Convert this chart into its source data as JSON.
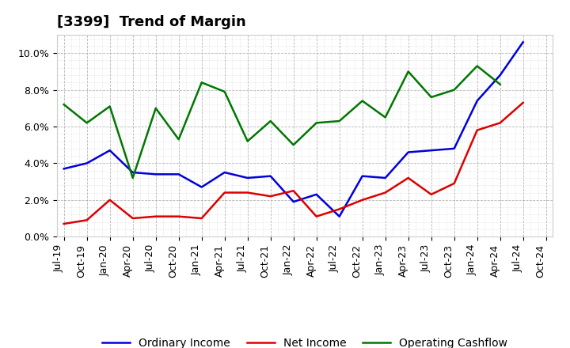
{
  "title": "[3399]  Trend of Margin",
  "title_fontsize": 13,
  "background_color": "#ffffff",
  "plot_background_color": "#ffffff",
  "grid_color": "#999999",
  "ylim": [
    0.0,
    0.11
  ],
  "yticks": [
    0.0,
    0.02,
    0.04,
    0.06,
    0.08,
    0.1
  ],
  "x_labels": [
    "Jul-19",
    "Oct-19",
    "Jan-20",
    "Apr-20",
    "Jul-20",
    "Oct-20",
    "Jan-21",
    "Apr-21",
    "Jul-21",
    "Oct-21",
    "Jan-22",
    "Apr-22",
    "Jul-22",
    "Oct-22",
    "Jan-23",
    "Apr-23",
    "Jul-23",
    "Oct-23",
    "Jan-24",
    "Apr-24",
    "Jul-24",
    "Oct-24"
  ],
  "ordinary_income": [
    0.037,
    0.04,
    0.047,
    0.035,
    0.034,
    0.034,
    0.027,
    0.035,
    0.032,
    0.033,
    0.019,
    0.023,
    0.011,
    0.033,
    0.032,
    0.046,
    0.047,
    0.048,
    0.074,
    0.088,
    0.106,
    null
  ],
  "net_income": [
    0.007,
    0.009,
    0.02,
    0.01,
    0.011,
    0.011,
    0.01,
    0.024,
    0.024,
    0.022,
    0.025,
    0.011,
    0.015,
    0.02,
    0.024,
    0.032,
    0.023,
    0.029,
    0.058,
    0.062,
    0.073,
    null
  ],
  "operating_cashflow": [
    0.072,
    0.062,
    0.071,
    0.032,
    0.07,
    0.053,
    0.084,
    0.079,
    0.052,
    0.063,
    0.05,
    0.062,
    0.063,
    0.074,
    0.065,
    0.09,
    0.076,
    0.08,
    0.093,
    0.083,
    null,
    null
  ],
  "ordinary_income_color": "#0000dd",
  "net_income_color": "#dd0000",
  "operating_cashflow_color": "#007700",
  "line_width": 1.8,
  "legend_labels": [
    "Ordinary Income",
    "Net Income",
    "Operating Cashflow"
  ],
  "xlabel_rotation": 90,
  "tick_fontsize": 9,
  "legend_fontsize": 10
}
